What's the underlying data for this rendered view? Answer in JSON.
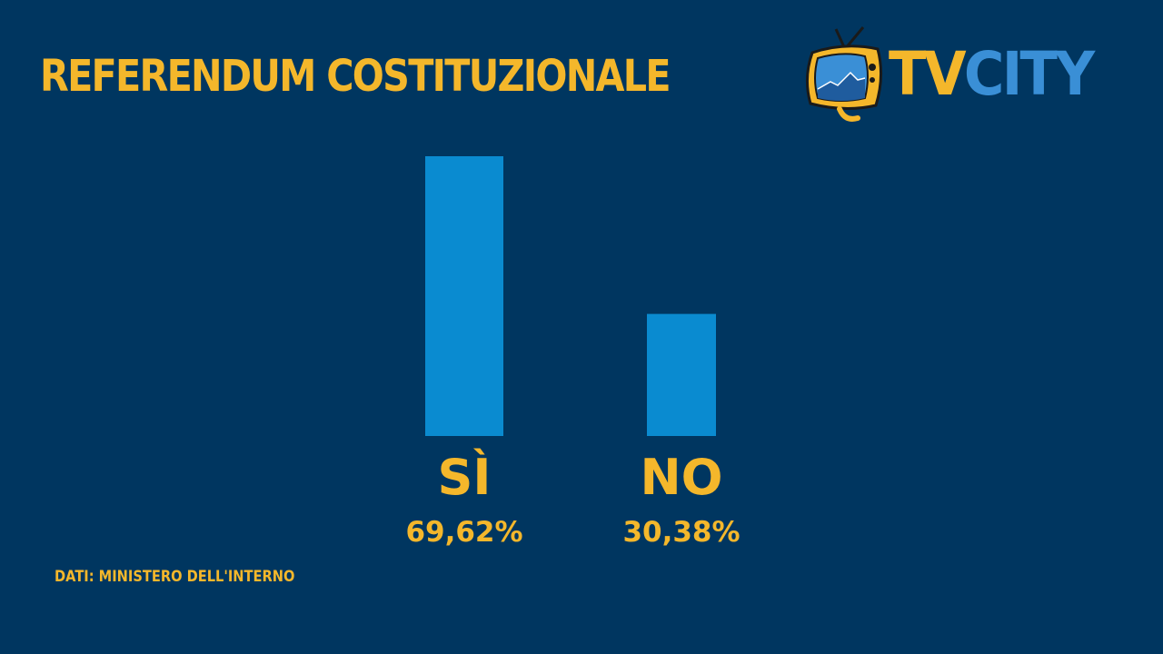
{
  "title": "REFERENDUM COSTITUZIONALE",
  "logo": {
    "part1": "TV",
    "part2": "CITY",
    "icon": "tv-icon"
  },
  "source": "DATI: MINISTERO DELL'INTERNO",
  "colors": {
    "background": "#003660",
    "accent": "#f4b72b",
    "bar": "#0a8bd0",
    "logo_city": "#3a8fd6"
  },
  "chart_data": {
    "type": "bar",
    "title": "REFERENDUM COSTITUZIONALE",
    "categories": [
      "SÌ",
      "NO"
    ],
    "values": [
      69.62,
      30.38
    ],
    "value_labels": [
      "69,62%",
      "30,38%"
    ],
    "unit": "%",
    "ylim": [
      0,
      69.62
    ],
    "grid": false,
    "legend": "none"
  }
}
